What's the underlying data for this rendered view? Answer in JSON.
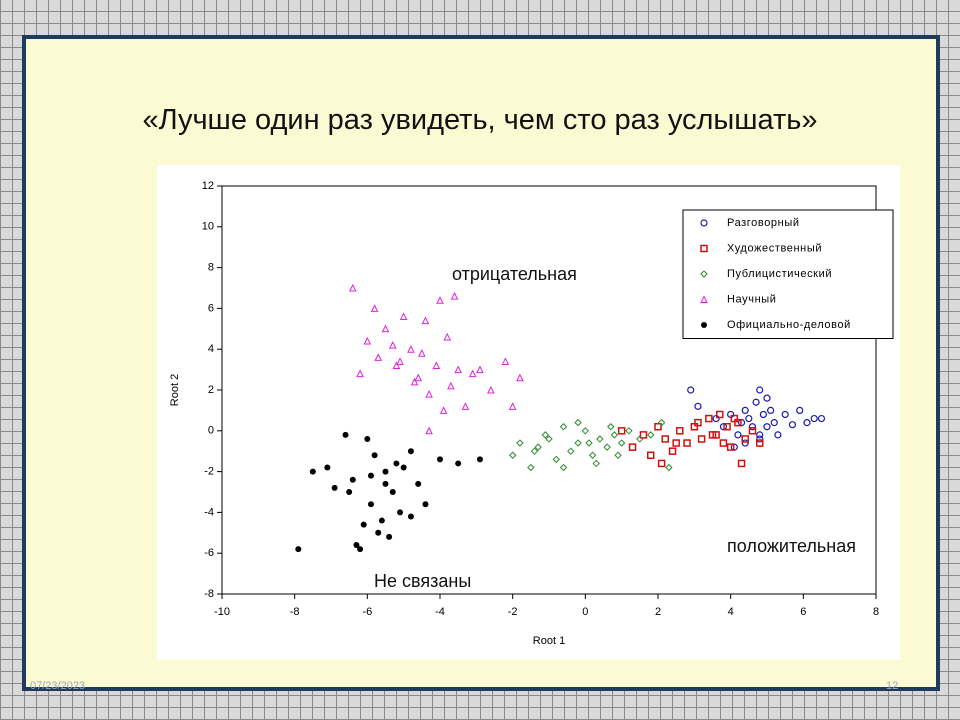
{
  "title": "«Лучше один раз увидеть, чем сто раз услышать»",
  "footer": {
    "date": "07/23/2023",
    "page": "12"
  },
  "chart_data": {
    "type": "scatter",
    "xlabel": "Root 1",
    "ylabel": "Root 2",
    "xlim": [
      -10,
      8
    ],
    "ylim": [
      -8,
      12
    ],
    "xticks": [
      -10,
      -8,
      -6,
      -4,
      -2,
      0,
      2,
      4,
      6,
      8
    ],
    "yticks": [
      -8,
      -6,
      -4,
      -2,
      0,
      2,
      4,
      6,
      8,
      10,
      12
    ],
    "legend": "upper right",
    "annotations": [
      "отрицательная",
      "положительная",
      "Не связаны"
    ],
    "series": [
      {
        "name": "Разговорный",
        "color": "#1a1aa8",
        "marker": "circle",
        "x": [
          2.9,
          3.1,
          3.6,
          3.8,
          4.0,
          4.2,
          4.3,
          4.4,
          4.5,
          4.6,
          4.7,
          4.8,
          4.8,
          4.9,
          5.0,
          5.1,
          5.2,
          5.3,
          5.5,
          5.7,
          5.9,
          6.1,
          6.3,
          6.5,
          4.8,
          4.4,
          4.1,
          5.0
        ],
        "y": [
          2.0,
          1.2,
          0.6,
          0.2,
          0.8,
          -0.2,
          0.4,
          1.0,
          0.6,
          0.2,
          1.4,
          2.0,
          -0.4,
          0.8,
          0.2,
          1.0,
          0.4,
          -0.2,
          0.8,
          0.3,
          1.0,
          0.4,
          0.6,
          0.6,
          -0.2,
          -0.6,
          -0.8,
          1.6
        ]
      },
      {
        "name": "Художественный",
        "color": "#d01010",
        "marker": "square",
        "x": [
          1.3,
          1.6,
          1.8,
          2.0,
          2.2,
          2.4,
          2.6,
          2.8,
          3.0,
          3.2,
          3.4,
          3.5,
          3.7,
          3.9,
          4.0,
          4.2,
          4.4,
          4.6,
          4.8,
          1.0,
          2.5,
          3.1,
          3.6,
          4.3,
          4.1,
          2.1,
          3.8
        ],
        "y": [
          -0.8,
          -0.2,
          -1.2,
          0.2,
          -0.4,
          -1.0,
          0.0,
          -0.6,
          0.2,
          -0.4,
          0.6,
          -0.2,
          0.8,
          0.2,
          -0.8,
          0.4,
          -0.4,
          0.0,
          -0.6,
          0.0,
          -0.6,
          0.4,
          -0.2,
          -1.6,
          0.6,
          -1.6,
          -0.6
        ]
      },
      {
        "name": "Публицистический",
        "color": "#2e8b2e",
        "marker": "diamond",
        "x": [
          -2.0,
          -1.8,
          -1.5,
          -1.3,
          -1.0,
          -0.8,
          -0.6,
          -0.4,
          -0.2,
          0.0,
          0.2,
          0.4,
          0.6,
          0.8,
          1.0,
          1.2,
          1.5,
          1.8,
          2.1,
          -0.6,
          -0.2,
          0.3,
          0.7,
          -1.1,
          0.1,
          2.3,
          -1.4,
          0.9
        ],
        "y": [
          -1.2,
          -0.6,
          -1.8,
          -0.8,
          -0.4,
          -1.4,
          0.2,
          -1.0,
          -0.6,
          0.0,
          -1.2,
          -0.4,
          -0.8,
          -0.2,
          -0.6,
          0.0,
          -0.4,
          -0.2,
          0.4,
          -1.8,
          0.4,
          -1.6,
          0.2,
          -0.2,
          -0.6,
          -1.8,
          -1.0,
          -1.2
        ]
      },
      {
        "name": "Научный",
        "color": "#e020e0",
        "marker": "triangle",
        "x": [
          -6.4,
          -6.2,
          -6.0,
          -5.8,
          -5.7,
          -5.5,
          -5.3,
          -5.1,
          -5.0,
          -4.8,
          -4.7,
          -4.5,
          -4.3,
          -4.1,
          -4.0,
          -3.8,
          -3.7,
          -3.5,
          -3.3,
          -3.1,
          -2.9,
          -2.6,
          -2.2,
          -2.0,
          -1.8,
          -4.6,
          -5.2,
          -3.9,
          -4.4,
          -3.6,
          -4.3
        ],
        "y": [
          7.0,
          2.8,
          4.4,
          6.0,
          3.6,
          5.0,
          4.2,
          3.4,
          5.6,
          4.0,
          2.4,
          3.8,
          1.8,
          3.2,
          6.4,
          4.6,
          2.2,
          3.0,
          1.2,
          2.8,
          3.0,
          2.0,
          3.4,
          1.2,
          2.6,
          2.6,
          3.2,
          1.0,
          5.4,
          6.6,
          0.0
        ]
      },
      {
        "name": "Официально-деловой",
        "color": "#000000",
        "marker": "dot",
        "x": [
          -7.9,
          -7.5,
          -7.1,
          -6.9,
          -6.6,
          -6.5,
          -6.4,
          -6.2,
          -6.0,
          -5.9,
          -5.8,
          -5.6,
          -5.5,
          -5.4,
          -5.3,
          -5.2,
          -5.1,
          -5.0,
          -4.8,
          -4.6,
          -4.4,
          -4.0,
          -3.5,
          -2.9,
          -6.3,
          -5.7,
          -5.9,
          -6.1,
          -5.5,
          -4.8
        ],
        "y": [
          -5.8,
          -2.0,
          -1.8,
          -2.8,
          -0.2,
          -3.0,
          -2.4,
          -5.8,
          -0.4,
          -3.6,
          -1.2,
          -4.4,
          -2.6,
          -5.2,
          -3.0,
          -1.6,
          -4.0,
          -1.8,
          -1.0,
          -2.6,
          -3.6,
          -1.4,
          -1.6,
          -1.4,
          -5.6,
          -5.0,
          -2.2,
          -4.6,
          -2.0,
          -4.2
        ]
      }
    ]
  }
}
